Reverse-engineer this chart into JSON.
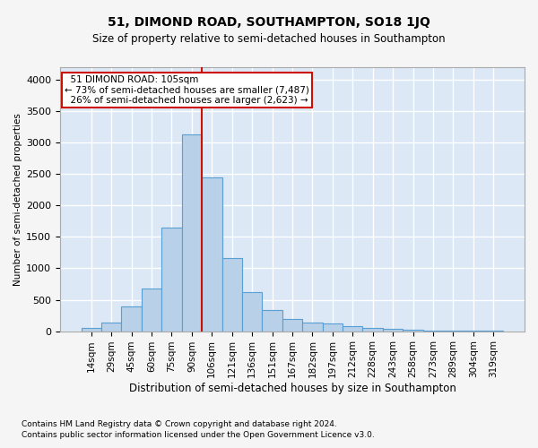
{
  "title": "51, DIMOND ROAD, SOUTHAMPTON, SO18 1JQ",
  "subtitle": "Size of property relative to semi-detached houses in Southampton",
  "xlabel": "Distribution of semi-detached houses by size in Southampton",
  "ylabel": "Number of semi-detached properties",
  "footnote1": "Contains HM Land Registry data © Crown copyright and database right 2024.",
  "footnote2": "Contains public sector information licensed under the Open Government Licence v3.0.",
  "bar_labels": [
    "14sqm",
    "29sqm",
    "45sqm",
    "60sqm",
    "75sqm",
    "90sqm",
    "106sqm",
    "121sqm",
    "136sqm",
    "151sqm",
    "167sqm",
    "182sqm",
    "197sqm",
    "212sqm",
    "228sqm",
    "243sqm",
    "258sqm",
    "273sqm",
    "289sqm",
    "304sqm",
    "319sqm"
  ],
  "bar_values": [
    50,
    130,
    390,
    680,
    1650,
    3130,
    2450,
    1160,
    620,
    340,
    190,
    130,
    120,
    85,
    55,
    35,
    20,
    10,
    5,
    5,
    5
  ],
  "bar_color": "#b8d0e8",
  "bar_edge_color": "#5a9fd4",
  "vline_color": "#cc1100",
  "annotation_text": "  51 DIMOND ROAD: 105sqm  \n← 73% of semi-detached houses are smaller (7,487)\n  26% of semi-detached houses are larger (2,623) →",
  "annotation_box_color": "#ffffff",
  "annotation_box_edge": "#cc1100",
  "ylim": [
    0,
    4200
  ],
  "yticks": [
    0,
    500,
    1000,
    1500,
    2000,
    2500,
    3000,
    3500,
    4000
  ],
  "bg_color": "#dce8f5",
  "grid_color": "#ffffff",
  "fig_bg_color": "#f5f5f5"
}
